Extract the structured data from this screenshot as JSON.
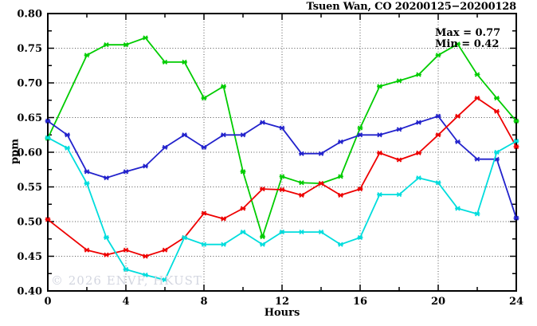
{
  "header": {
    "title": "Tsuen Wan, CO 20200125−20200128"
  },
  "watermark": "© 2026 ENVF, HKUST",
  "annotation": {
    "max_label": "Max = 0.77",
    "min_label": "Min = 0.42"
  },
  "chart_data": {
    "type": "line",
    "title": "Tsuen Wan, CO 20200125−20200128",
    "xlabel": "Hours",
    "ylabel": "ppm",
    "xlim": [
      0,
      24
    ],
    "ylim": [
      0.4,
      0.8
    ],
    "grid": "dotted; vertical every 4 hours, horizontal every 0.05 ppm",
    "legend": "none",
    "x_tick_labels": [
      "0",
      "4",
      "8",
      "12",
      "16",
      "20",
      "24"
    ],
    "x_tick_values": [
      0,
      4,
      8,
      12,
      16,
      20,
      24
    ],
    "x_minor_tick_every": 2,
    "y_tick_labels": [
      "0.40",
      "0.45",
      "0.50",
      "0.55",
      "0.60",
      "0.65",
      "0.70",
      "0.75",
      "0.80"
    ],
    "y_tick_values": [
      0.4,
      0.45,
      0.5,
      0.55,
      0.6,
      0.65,
      0.7,
      0.75,
      0.8
    ],
    "y_minor_tick_step": 0.025,
    "marker": "asterisk",
    "x": [
      0,
      1,
      2,
      3,
      4,
      5,
      6,
      7,
      8,
      9,
      10,
      11,
      12,
      13,
      14,
      15,
      16,
      17,
      18,
      19,
      20,
      21,
      22,
      23,
      24
    ],
    "series": [
      {
        "name": "green-series",
        "color": "#00cc00",
        "values": [
          0.62,
          null,
          0.74,
          0.755,
          0.755,
          0.765,
          0.73,
          0.73,
          0.678,
          0.695,
          0.572,
          0.478,
          0.565,
          0.556,
          0.555,
          0.565,
          0.635,
          0.695,
          0.703,
          0.712,
          0.74,
          0.756,
          0.712,
          0.678,
          0.645
        ]
      },
      {
        "name": "blue-series",
        "color": "#2222cc",
        "values": [
          0.645,
          0.625,
          0.572,
          0.563,
          0.572,
          0.58,
          0.607,
          0.625,
          0.607,
          0.625,
          0.625,
          0.643,
          0.635,
          0.598,
          0.598,
          0.615,
          0.625,
          0.625,
          0.633,
          0.643,
          0.652,
          0.615,
          0.59,
          0.59,
          0.505
        ]
      },
      {
        "name": "red-series",
        "color": "#ee0000",
        "values": [
          0.503,
          null,
          0.459,
          0.452,
          0.459,
          0.45,
          0.459,
          0.477,
          0.512,
          0.504,
          0.519,
          0.547,
          0.546,
          0.538,
          0.555,
          0.538,
          0.547,
          0.599,
          0.589,
          0.599,
          0.625,
          0.652,
          0.678,
          0.659,
          0.608
        ]
      },
      {
        "name": "cyan-series",
        "color": "#00dddd",
        "values": [
          0.621,
          0.606,
          0.555,
          0.477,
          0.431,
          0.423,
          0.416,
          0.477,
          0.467,
          0.467,
          0.485,
          0.467,
          0.485,
          0.485,
          0.485,
          0.467,
          0.477,
          0.539,
          0.539,
          0.563,
          0.556,
          0.519,
          0.511,
          0.6,
          0.616
        ]
      }
    ],
    "annotations": [
      "Max = 0.77",
      "Min = 0.42"
    ]
  }
}
